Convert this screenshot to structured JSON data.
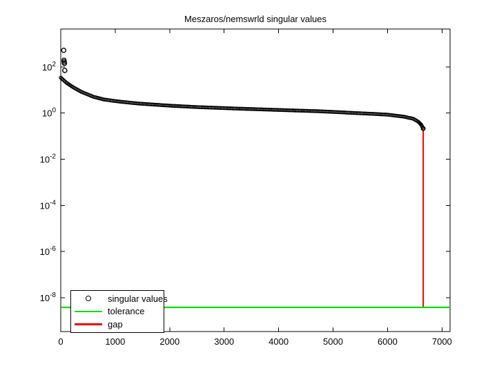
{
  "figure": {
    "title": "Meszaros/nemswrld singular values",
    "background": "#ffffff",
    "text_color": "#000000"
  },
  "legend": {
    "position": "southwest",
    "items": [
      {
        "label": "singular values",
        "marker": "circle-icon",
        "color": "#000000"
      },
      {
        "label": "tolerance",
        "marker": "line-icon",
        "color": "#00dd00"
      },
      {
        "label": "gap",
        "marker": "line-icon",
        "color": "#ee0000"
      }
    ]
  },
  "chart_data": {
    "type": "scatter",
    "title": "Meszaros/nemswrld singular values",
    "xlabel": "",
    "ylabel": "",
    "x_ticks": [
      0,
      1000,
      2000,
      3000,
      4000,
      5000,
      6000,
      7000
    ],
    "y_tick_exponents": [
      2,
      0,
      -2,
      -4,
      -6,
      -8
    ],
    "xlim": [
      0,
      7148
    ],
    "ylim": [
      3.4e-10,
      4400
    ],
    "y_scale": "log10",
    "grid": false,
    "legend_position": "southwest",
    "series": [
      {
        "name": "singular values",
        "style": "open-circle-markers",
        "color": "#000000",
        "head_points": [
          [
            55,
            525
          ],
          [
            60,
            195
          ],
          [
            64,
            165
          ],
          [
            68,
            143
          ],
          [
            73,
            71
          ]
        ],
        "curve_points": [
          [
            1,
            34
          ],
          [
            100,
            21
          ],
          [
            220,
            13.5
          ],
          [
            380,
            8.3
          ],
          [
            600,
            5.1
          ],
          [
            790,
            3.9
          ],
          [
            1050,
            3.2
          ],
          [
            1420,
            2.6
          ],
          [
            2000,
            2.1
          ],
          [
            2500,
            1.82
          ],
          [
            3200,
            1.58
          ],
          [
            3950,
            1.38
          ],
          [
            4700,
            1.21
          ],
          [
            5480,
            0.99
          ],
          [
            5990,
            0.86
          ],
          [
            6300,
            0.7
          ],
          [
            6470,
            0.57
          ],
          [
            6560,
            0.43
          ],
          [
            6620,
            0.31
          ],
          [
            6655,
            0.215
          ]
        ],
        "tail_point": [
          6655,
          0.215
        ]
      },
      {
        "name": "tolerance",
        "style": "hline",
        "color": "#00dd00",
        "value": 3.8e-09
      },
      {
        "name": "gap",
        "style": "vline",
        "color": "#ee0000",
        "x": 6655,
        "y_from": 0.215,
        "y_to": 3.8e-09
      }
    ]
  }
}
